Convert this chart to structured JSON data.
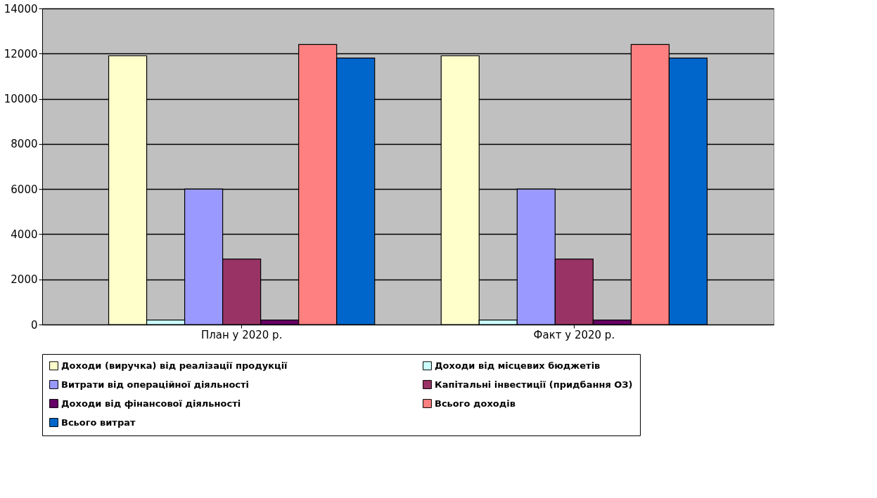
{
  "chart_data": {
    "type": "bar",
    "categories": [
      "План у 2020 р.",
      "Факт у 2020 р."
    ],
    "series": [
      {
        "name": "Доходи (виручка) від реалізації продукції",
        "color": "#ffffcc",
        "values": [
          11900,
          11900
        ]
      },
      {
        "name": "Доходи від місцевих бюджетів",
        "color": "#ccffff",
        "values": [
          200,
          200
        ]
      },
      {
        "name": "Витрати від операційної діяльності",
        "color": "#9999ff",
        "values": [
          6000,
          6000
        ]
      },
      {
        "name": "Капітальні інвестиції (придбання ОЗ)",
        "color": "#993366",
        "values": [
          2900,
          2900
        ]
      },
      {
        "name": "Доходи від фінансової діяльності",
        "color": "#660066",
        "values": [
          200,
          200
        ]
      },
      {
        "name": "Всього доходів",
        "color": "#ff8080",
        "values": [
          12400,
          12400
        ]
      },
      {
        "name": "Всього витрат",
        "color": "#0066cc",
        "values": [
          11800,
          11800
        ]
      }
    ],
    "ylim": [
      0,
      14000
    ],
    "yticks": [
      0,
      2000,
      4000,
      6000,
      8000,
      10000,
      12000,
      14000
    ],
    "grid": "y",
    "legend": "bottom"
  }
}
